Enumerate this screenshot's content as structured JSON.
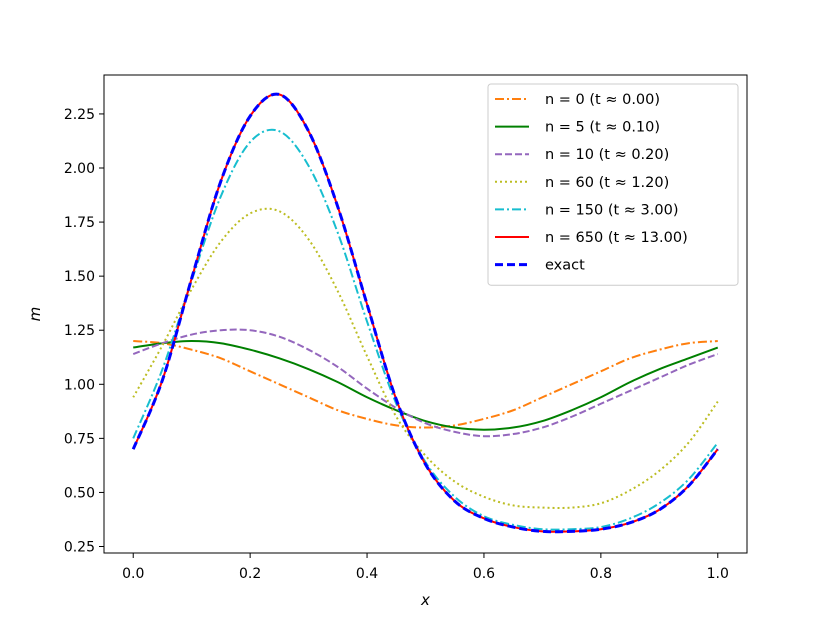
{
  "chart_data": {
    "type": "line",
    "xlabel": "x",
    "ylabel": "m",
    "xlim": [
      -0.05,
      1.05
    ],
    "ylim": [
      0.22,
      2.43
    ],
    "xticks": [
      0.0,
      0.2,
      0.4,
      0.6,
      0.8,
      1.0
    ],
    "xtick_labels": [
      "0.0",
      "0.2",
      "0.4",
      "0.6",
      "0.8",
      "1.0"
    ],
    "yticks": [
      0.25,
      0.5,
      0.75,
      1.0,
      1.25,
      1.5,
      1.75,
      2.0,
      2.25
    ],
    "ytick_labels": [
      "0.25",
      "0.50",
      "0.75",
      "1.00",
      "1.25",
      "1.50",
      "1.75",
      "2.00",
      "2.25"
    ],
    "grid": false,
    "legend_position": "top-right",
    "series": [
      {
        "name": "n = 0 (t ≈ 0.00)",
        "color": "#ff7f0e",
        "style": "dashdot",
        "x": [
          0.0,
          0.05,
          0.1,
          0.15,
          0.2,
          0.25,
          0.3,
          0.35,
          0.4,
          0.45,
          0.5,
          0.55,
          0.6,
          0.65,
          0.7,
          0.75,
          0.8,
          0.85,
          0.9,
          0.95,
          1.0
        ],
        "y": [
          1.2,
          1.19,
          1.16,
          1.12,
          1.06,
          1.0,
          0.94,
          0.88,
          0.84,
          0.81,
          0.8,
          0.81,
          0.84,
          0.88,
          0.94,
          1.0,
          1.06,
          1.12,
          1.16,
          1.19,
          1.2
        ]
      },
      {
        "name": "n = 5 (t ≈ 0.10)",
        "color": "#008000",
        "style": "solid",
        "x": [
          0.0,
          0.05,
          0.1,
          0.15,
          0.2,
          0.25,
          0.3,
          0.35,
          0.4,
          0.45,
          0.5,
          0.55,
          0.6,
          0.65,
          0.7,
          0.75,
          0.8,
          0.85,
          0.9,
          0.95,
          1.0
        ],
        "y": [
          1.17,
          1.19,
          1.2,
          1.19,
          1.16,
          1.12,
          1.07,
          1.01,
          0.94,
          0.88,
          0.83,
          0.8,
          0.79,
          0.8,
          0.83,
          0.88,
          0.94,
          1.01,
          1.07,
          1.12,
          1.17
        ]
      },
      {
        "name": "n = 10 (t ≈ 0.20)",
        "color": "#9467bd",
        "style": "dashed",
        "x": [
          0.0,
          0.05,
          0.1,
          0.15,
          0.2,
          0.25,
          0.3,
          0.35,
          0.4,
          0.45,
          0.5,
          0.55,
          0.6,
          0.65,
          0.7,
          0.75,
          0.8,
          0.85,
          0.9,
          0.95,
          1.0
        ],
        "y": [
          1.14,
          1.19,
          1.23,
          1.25,
          1.25,
          1.22,
          1.16,
          1.08,
          0.98,
          0.89,
          0.82,
          0.78,
          0.76,
          0.77,
          0.8,
          0.85,
          0.91,
          0.97,
          1.03,
          1.09,
          1.14
        ]
      },
      {
        "name": "n = 60 (t ≈ 1.20)",
        "color": "#bcbd22",
        "style": "dotted",
        "x": [
          0.0,
          0.05,
          0.1,
          0.15,
          0.2,
          0.25,
          0.3,
          0.35,
          0.4,
          0.45,
          0.5,
          0.55,
          0.6,
          0.65,
          0.7,
          0.75,
          0.8,
          0.85,
          0.9,
          0.95,
          1.0
        ],
        "y": [
          0.94,
          1.18,
          1.44,
          1.66,
          1.79,
          1.8,
          1.67,
          1.43,
          1.13,
          0.85,
          0.67,
          0.55,
          0.48,
          0.44,
          0.43,
          0.43,
          0.45,
          0.51,
          0.6,
          0.73,
          0.92
        ]
      },
      {
        "name": "n = 150 (t ≈ 3.00)",
        "color": "#17becf",
        "style": "dashdot",
        "x": [
          0.0,
          0.05,
          0.1,
          0.15,
          0.2,
          0.25,
          0.3,
          0.35,
          0.4,
          0.45,
          0.5,
          0.55,
          0.6,
          0.65,
          0.7,
          0.75,
          0.8,
          0.85,
          0.9,
          0.95,
          1.0
        ],
        "y": [
          0.75,
          1.07,
          1.48,
          1.87,
          2.12,
          2.17,
          2.01,
          1.7,
          1.29,
          0.91,
          0.64,
          0.48,
          0.39,
          0.35,
          0.33,
          0.33,
          0.34,
          0.38,
          0.45,
          0.56,
          0.73
        ]
      },
      {
        "name": "n = 650 (t ≈ 13.00)",
        "color": "#ff0000",
        "style": "solid",
        "x": [
          0.0,
          0.05,
          0.1,
          0.15,
          0.2,
          0.25,
          0.3,
          0.35,
          0.4,
          0.45,
          0.5,
          0.55,
          0.6,
          0.65,
          0.7,
          0.75,
          0.8,
          0.85,
          0.9,
          0.95,
          1.0
        ],
        "y": [
          0.7,
          1.02,
          1.49,
          1.94,
          2.24,
          2.34,
          2.17,
          1.82,
          1.37,
          0.93,
          0.63,
          0.46,
          0.38,
          0.34,
          0.32,
          0.32,
          0.33,
          0.36,
          0.42,
          0.53,
          0.7
        ]
      },
      {
        "name": "exact",
        "color": "#0000ff",
        "style": "bigdash",
        "x": [
          0.0,
          0.05,
          0.1,
          0.15,
          0.2,
          0.25,
          0.3,
          0.35,
          0.4,
          0.45,
          0.5,
          0.55,
          0.6,
          0.65,
          0.7,
          0.75,
          0.8,
          0.85,
          0.9,
          0.95,
          1.0
        ],
        "y": [
          0.7,
          1.02,
          1.49,
          1.94,
          2.24,
          2.34,
          2.17,
          1.82,
          1.37,
          0.93,
          0.63,
          0.46,
          0.38,
          0.34,
          0.32,
          0.32,
          0.33,
          0.36,
          0.42,
          0.53,
          0.7
        ]
      }
    ]
  }
}
